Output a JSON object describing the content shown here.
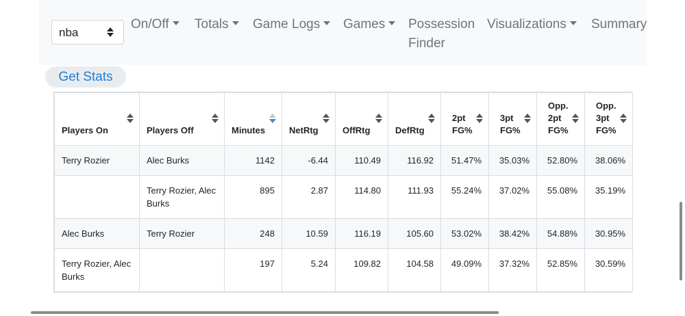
{
  "nav": {
    "league_select": "nba",
    "items": [
      {
        "label": "On/Off",
        "dropdown": true
      },
      {
        "label": "Totals",
        "dropdown": true
      },
      {
        "label": "Game Logs",
        "dropdown": true
      },
      {
        "label": "Games",
        "dropdown": true
      },
      {
        "label": "Possession Finder",
        "dropdown": false
      },
      {
        "label": "Visualizations",
        "dropdown": true
      },
      {
        "label": "Summary Tables",
        "dropdown": false
      }
    ]
  },
  "get_stats_label": "Get Stats",
  "table": {
    "columns": [
      "Players On",
      "Players Off",
      "Minutes",
      "NetRtg",
      "OffRtg",
      "DefRtg",
      "2pt FG%",
      "3pt FG%",
      "Opp. 2pt FG%",
      "Opp. 3pt FG%"
    ],
    "rows": [
      [
        "Terry Rozier",
        "Alec Burks",
        "1142",
        "-6.44",
        "110.49",
        "116.92",
        "51.47%",
        "35.03%",
        "52.80%",
        "38.06%"
      ],
      [
        "",
        "Terry Rozier, Alec Burks",
        "895",
        "2.87",
        "114.80",
        "111.93",
        "55.24%",
        "37.02%",
        "55.08%",
        "35.19%"
      ],
      [
        "Alec Burks",
        "Terry Rozier",
        "248",
        "10.59",
        "116.19",
        "105.60",
        "53.02%",
        "38.42%",
        "54.88%",
        "30.95%"
      ],
      [
        "Terry Rozier, Alec Burks",
        "",
        "197",
        "5.24",
        "109.82",
        "104.58",
        "49.09%",
        "37.32%",
        "52.85%",
        "30.59%"
      ]
    ]
  },
  "colors": {
    "link": "#1a7fd6",
    "sort_active": "#3d8be0"
  }
}
